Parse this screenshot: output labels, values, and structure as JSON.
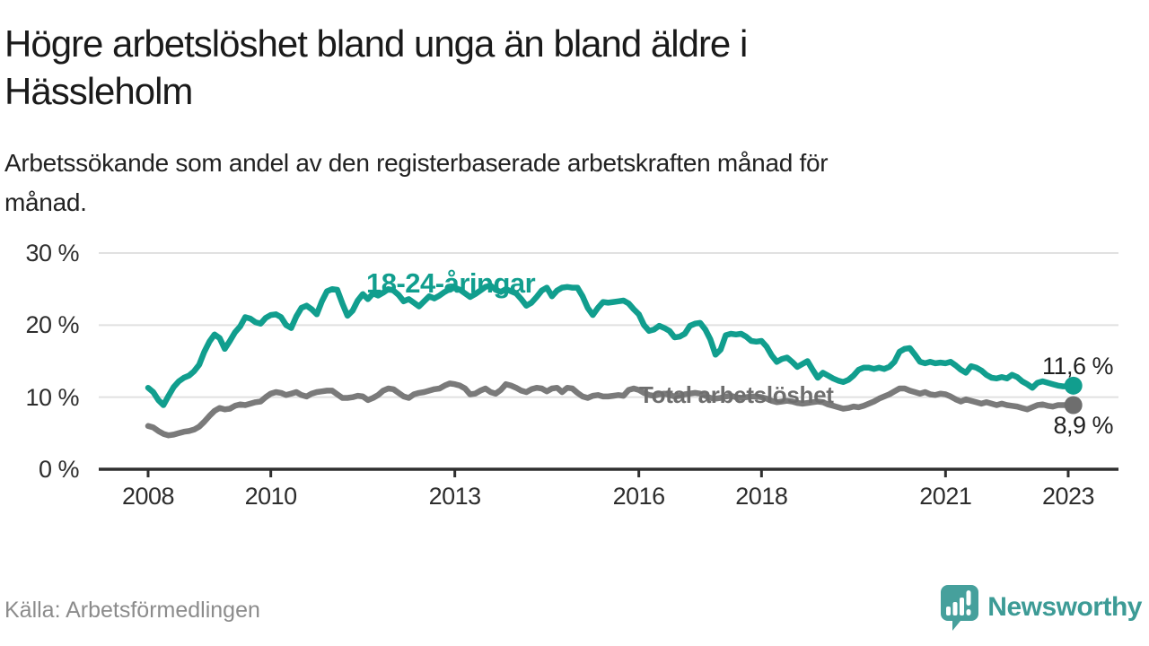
{
  "header": {
    "title": "Högre arbetslöshet bland unga än bland äldre i\nHässleholm",
    "subtitle": "Arbetssökande som andel av den registerbaserade arbetskraften månad för\nmånad."
  },
  "footer": {
    "source": "Källa: Arbetsförmedlingen",
    "brand": "Newsworthy",
    "brand_color": "#3d9b96",
    "logo_color": "#46a09c"
  },
  "chart_data": {
    "type": "line",
    "title": "Arbetssökande som andel av den registerbaserade arbetskraften månad för månad",
    "frequency": "monthly",
    "start_year": 2008,
    "x_axis": {
      "tick_years": [
        2008,
        2010,
        2013,
        2016,
        2018,
        2021,
        2023
      ],
      "tick_labels": [
        "2008",
        "2010",
        "2013",
        "2016",
        "2018",
        "2021",
        "2023"
      ]
    },
    "y_axis": {
      "ticks": [
        0,
        10,
        20,
        30
      ],
      "tick_labels": [
        "0 %",
        "10 %",
        "20 %",
        "30 %"
      ],
      "ylim": [
        0,
        31
      ],
      "grid": true,
      "grid_color": "#e1e1e1",
      "axis_color": "#2f2f2f"
    },
    "series": [
      {
        "name": "18-24-åringar",
        "color": "#119e8e",
        "end_label": "11,6 %",
        "end_value": 11.6,
        "values": [
          11.3,
          10.7,
          9.6,
          8.9,
          10.2,
          11.4,
          12.2,
          12.7,
          13.0,
          13.6,
          14.5,
          16.3,
          17.7,
          18.7,
          18.2,
          16.7,
          17.8,
          19.0,
          19.8,
          21.1,
          20.9,
          20.4,
          20.2,
          21.0,
          21.4,
          21.5,
          21.1,
          20.0,
          19.6,
          21.2,
          22.4,
          22.7,
          22.2,
          21.5,
          23.3,
          24.7,
          25.0,
          24.9,
          23.0,
          21.3,
          22.0,
          23.4,
          24.3,
          23.6,
          24.4,
          24.1,
          24.5,
          25.0,
          24.8,
          24.2,
          23.3,
          23.6,
          23.1,
          22.6,
          23.3,
          24.0,
          23.7,
          24.1,
          24.6,
          25.0,
          25.2,
          24.9,
          24.4,
          23.9,
          24.3,
          24.8,
          25.3,
          25.5,
          24.9,
          24.6,
          25.0,
          24.7,
          24.4,
          23.6,
          22.7,
          23.1,
          23.9,
          24.8,
          25.2,
          24.0,
          24.8,
          25.2,
          25.3,
          25.2,
          25.2,
          24.0,
          22.4,
          21.4,
          22.4,
          23.2,
          23.1,
          23.2,
          23.3,
          23.4,
          23.0,
          22.2,
          21.5,
          20.0,
          19.2,
          19.4,
          19.9,
          19.6,
          19.2,
          18.3,
          18.4,
          18.8,
          19.9,
          20.2,
          20.3,
          19.4,
          18.0,
          15.9,
          16.6,
          18.6,
          18.8,
          18.7,
          18.8,
          18.4,
          17.8,
          17.7,
          17.8,
          17.0,
          15.8,
          14.9,
          15.3,
          15.5,
          14.9,
          14.2,
          14.6,
          15.0,
          13.8,
          12.7,
          13.4,
          13.0,
          12.6,
          12.3,
          12.1,
          12.4,
          13.0,
          13.8,
          14.1,
          14.1,
          13.9,
          14.1,
          13.9,
          14.2,
          14.9,
          16.3,
          16.7,
          16.8,
          15.9,
          14.9,
          14.7,
          14.9,
          14.7,
          14.8,
          14.7,
          14.9,
          14.4,
          13.8,
          13.4,
          14.3,
          14.1,
          13.7,
          13.1,
          12.7,
          12.6,
          12.8,
          12.6,
          13.1,
          12.8,
          12.2,
          11.8,
          11.3,
          12.0,
          12.2,
          12.0,
          11.8,
          11.6,
          11.5,
          11.5,
          11.6
        ]
      },
      {
        "name": "Total arbetslöshet",
        "color": "#7a7a7a",
        "end_label": "8,9 %",
        "end_value": 8.9,
        "values": [
          6.0,
          5.8,
          5.3,
          4.9,
          4.7,
          4.8,
          5.0,
          5.2,
          5.3,
          5.5,
          5.9,
          6.6,
          7.4,
          8.1,
          8.5,
          8.3,
          8.4,
          8.8,
          9.0,
          8.9,
          9.1,
          9.3,
          9.4,
          10.0,
          10.5,
          10.7,
          10.6,
          10.3,
          10.5,
          10.7,
          10.3,
          10.1,
          10.5,
          10.7,
          10.8,
          10.9,
          10.9,
          10.4,
          9.9,
          9.9,
          10.0,
          10.2,
          10.1,
          9.6,
          9.9,
          10.3,
          10.9,
          11.2,
          11.1,
          10.6,
          10.1,
          9.9,
          10.4,
          10.6,
          10.7,
          10.9,
          11.1,
          11.2,
          11.6,
          11.9,
          11.8,
          11.6,
          11.2,
          10.4,
          10.5,
          10.9,
          11.2,
          10.7,
          10.5,
          11.0,
          11.8,
          11.6,
          11.3,
          10.9,
          10.7,
          11.1,
          11.3,
          11.2,
          10.8,
          11.2,
          11.3,
          10.7,
          11.3,
          11.2,
          10.6,
          10.1,
          9.9,
          10.2,
          10.3,
          10.1,
          10.1,
          10.2,
          10.3,
          10.2,
          11.0,
          11.2,
          11.0,
          10.6,
          10.3,
          10.2,
          10.4,
          10.5,
          10.3,
          10.1,
          10.2,
          10.4,
          10.5,
          10.6,
          10.5,
          10.2,
          9.9,
          9.8,
          9.9,
          10.1,
          10.2,
          10.0,
          9.9,
          10.0,
          10.1,
          10.1,
          10.0,
          9.8,
          9.5,
          9.3,
          9.4,
          9.5,
          9.4,
          9.2,
          9.1,
          9.2,
          9.3,
          9.4,
          9.3,
          9.0,
          8.8,
          8.6,
          8.4,
          8.5,
          8.7,
          8.6,
          8.8,
          9.1,
          9.4,
          9.8,
          10.1,
          10.4,
          10.8,
          11.2,
          11.2,
          10.9,
          10.7,
          10.5,
          10.7,
          10.4,
          10.3,
          10.5,
          10.4,
          10.1,
          9.7,
          9.4,
          9.7,
          9.5,
          9.3,
          9.1,
          9.3,
          9.1,
          8.9,
          9.1,
          8.9,
          8.8,
          8.7,
          8.5,
          8.3,
          8.6,
          8.9,
          9.0,
          8.8,
          8.7,
          8.9,
          8.9,
          8.9,
          8.9
        ]
      }
    ]
  }
}
